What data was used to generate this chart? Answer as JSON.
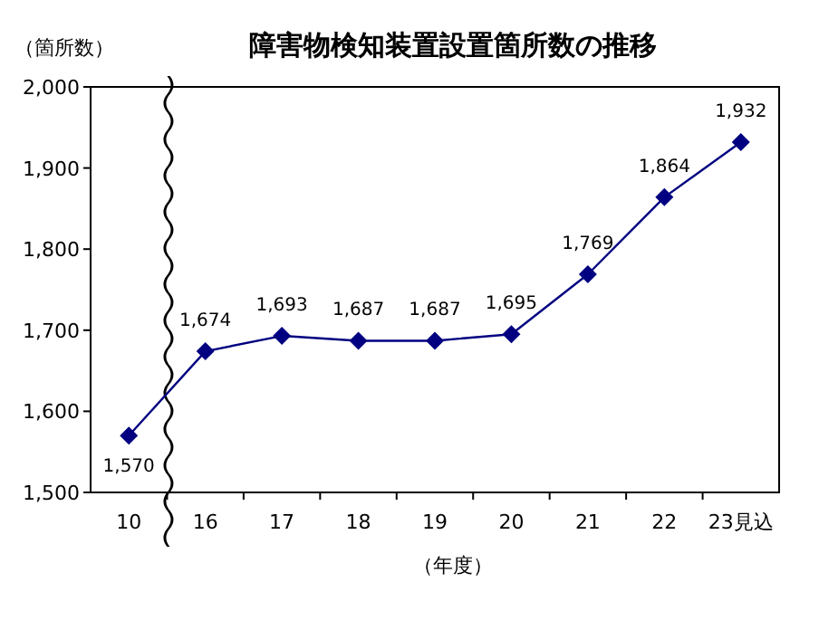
{
  "chart_data": {
    "type": "line",
    "title": "障害物検知装置設置箇所数の推移",
    "ylabel": "（箇所数）",
    "xlabel": "（年度）",
    "categories": [
      "10",
      "16",
      "17",
      "18",
      "19",
      "20",
      "21",
      "22",
      "23見込"
    ],
    "series": [
      {
        "color": "#000080",
        "values": [
          1570,
          1674,
          1693,
          1687,
          1687,
          1695,
          1769,
          1864,
          1932
        ],
        "value_labels": [
          "1,570",
          "1,674",
          "1,693",
          "1,687",
          "1,687",
          "1,695",
          "1,769",
          "1,864",
          "1,932"
        ]
      }
    ],
    "ylim": [
      1500,
      2000
    ],
    "yticks": [
      {
        "value": 1500,
        "label": "1,500"
      },
      {
        "value": 1600,
        "label": "1,600"
      },
      {
        "value": 1700,
        "label": "1,700"
      },
      {
        "value": 1800,
        "label": "1,800"
      },
      {
        "value": 1900,
        "label": "1,900"
      },
      {
        "value": 2000,
        "label": "2,000"
      }
    ],
    "marker": "diamond",
    "line_style": "solid"
  }
}
